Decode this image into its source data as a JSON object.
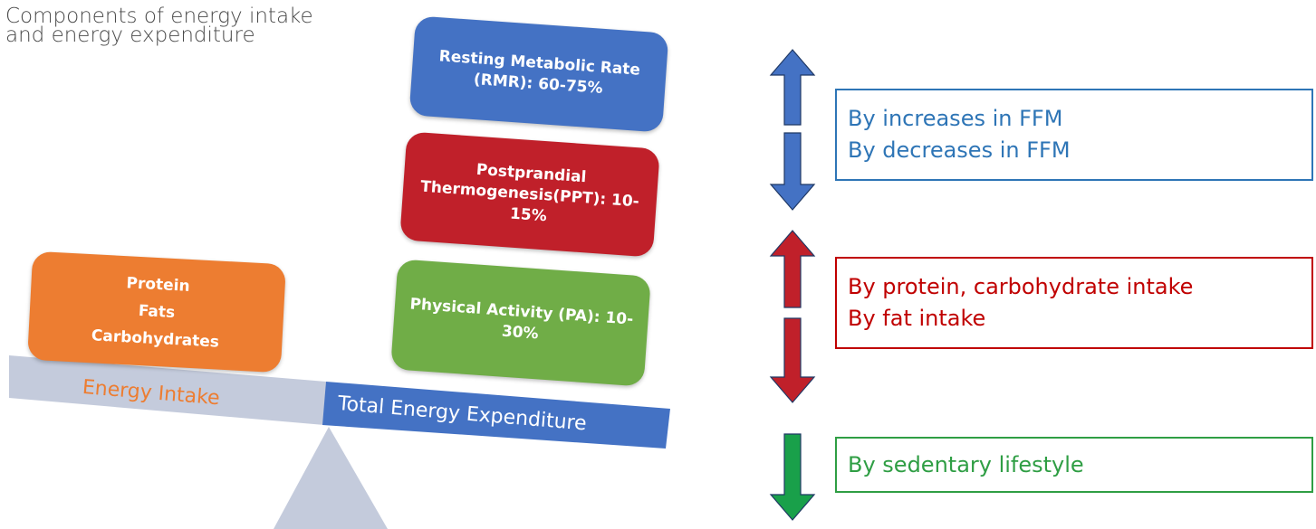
{
  "title": {
    "line1": "Components of energy intake",
    "line2": "and energy expenditure"
  },
  "colors": {
    "blue": "#4472c4",
    "red": "#c0202a",
    "green": "#70ad47",
    "orange": "#ed7d31",
    "beam_gray": "#c4cbdc",
    "arrow_green": "#19a04a",
    "text_blue": "#2e75b6",
    "text_red": "#c00000",
    "text_green": "#2f9e44"
  },
  "intake_box": {
    "lines": [
      "Protein",
      "Fats",
      "Carbohydrates"
    ]
  },
  "expenditure_boxes": {
    "rmr": [
      "Resting Metabolic Rate",
      "(RMR): 60-75%"
    ],
    "ppt": [
      "Postprandial",
      "Thermogenesis(PPT): 10-",
      "15%"
    ],
    "pa": [
      "Physical Activity (PA): 10-",
      "30%"
    ]
  },
  "beam": {
    "left_label": "Energy Intake",
    "right_label": "Total Energy Expenditure"
  },
  "effects": {
    "rmr": [
      "By increases in FFM",
      "By decreases in FFM"
    ],
    "ppt": [
      "By protein, carbohydrate intake",
      "By fat intake"
    ],
    "pa": [
      "By sedentary lifestyle"
    ]
  },
  "arrows": [
    {
      "name": "rmr-up-arrow-icon",
      "direction": "up",
      "color": "blue"
    },
    {
      "name": "rmr-down-arrow-icon",
      "direction": "down",
      "color": "blue"
    },
    {
      "name": "ppt-up-arrow-icon",
      "direction": "up",
      "color": "red"
    },
    {
      "name": "ppt-down-arrow-icon",
      "direction": "down",
      "color": "red"
    },
    {
      "name": "pa-down-arrow-icon",
      "direction": "down",
      "color": "green"
    }
  ]
}
